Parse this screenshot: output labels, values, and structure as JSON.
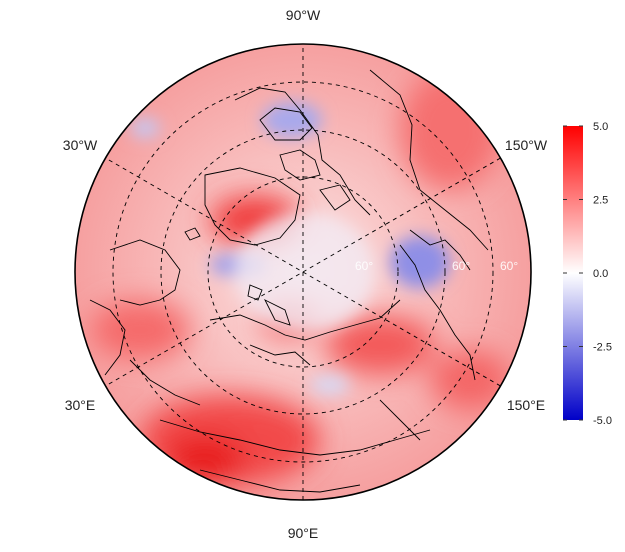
{
  "map": {
    "projection": "north-polar-stereographic",
    "longitude_labels": {
      "top": "90°W",
      "upper_left": "30°W",
      "upper_right": "150°W",
      "lower_left": "30°E",
      "lower_right": "150°E",
      "bottom": "90°E"
    },
    "latitude_labels": [
      "60°",
      "60°",
      "60°"
    ],
    "colors": {
      "low": "#0000c8",
      "mid": "#ffffff",
      "high": "#ff0000",
      "coastline": "#000000",
      "graticule": "#000000"
    }
  },
  "colorbar": {
    "ticks": [
      "5.0",
      "2.5",
      "0.0",
      "-2.5",
      "-5.0"
    ],
    "min": -5.0,
    "max": 5.0
  }
}
